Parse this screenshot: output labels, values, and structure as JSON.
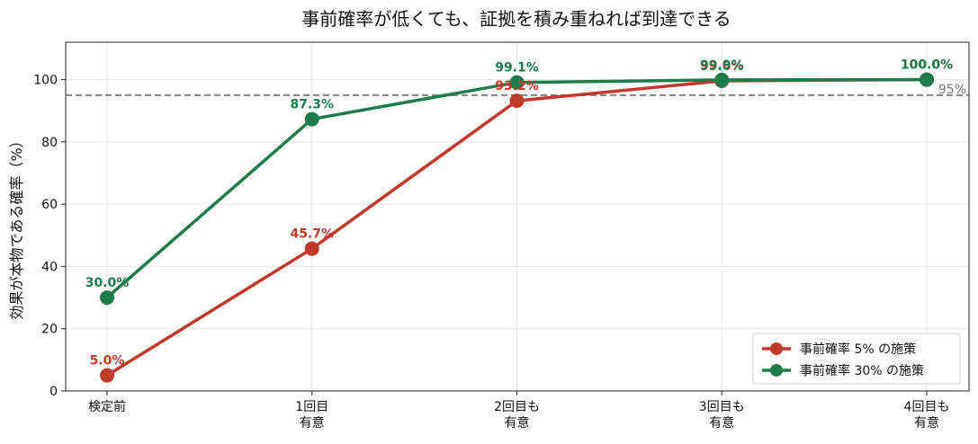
{
  "chart_data": {
    "type": "line",
    "title": "事前確率が低くても、証拠を積み重ねれば到達できる",
    "xlabel": "",
    "ylabel": "効果が本物である確率（%）",
    "categories": [
      "検定前",
      "1回目\n有意",
      "2回目も\n有意",
      "3回目も\n有意",
      "4回目も\n有意"
    ],
    "ylim": [
      0,
      112
    ],
    "yticks": [
      0,
      20,
      40,
      60,
      80,
      100
    ],
    "grid": true,
    "legend_position": "bottom-right",
    "reference_line": {
      "value": 95,
      "label": "95%",
      "color": "#808080"
    },
    "series": [
      {
        "name": "事前確率 5% の施策",
        "color": "#c0392b",
        "values": [
          5.0,
          45.7,
          93.2,
          99.6,
          100.0
        ],
        "labels": [
          "5.0%",
          "45.7%",
          "93.2%",
          "99.6%",
          "100.0%"
        ]
      },
      {
        "name": "事前確率 30% の施策",
        "color": "#1e7b4c",
        "values": [
          30.0,
          87.3,
          99.1,
          99.9,
          100.0
        ],
        "labels": [
          "30.0%",
          "87.3%",
          "99.1%",
          "99.9%",
          "100.0%"
        ]
      }
    ]
  }
}
